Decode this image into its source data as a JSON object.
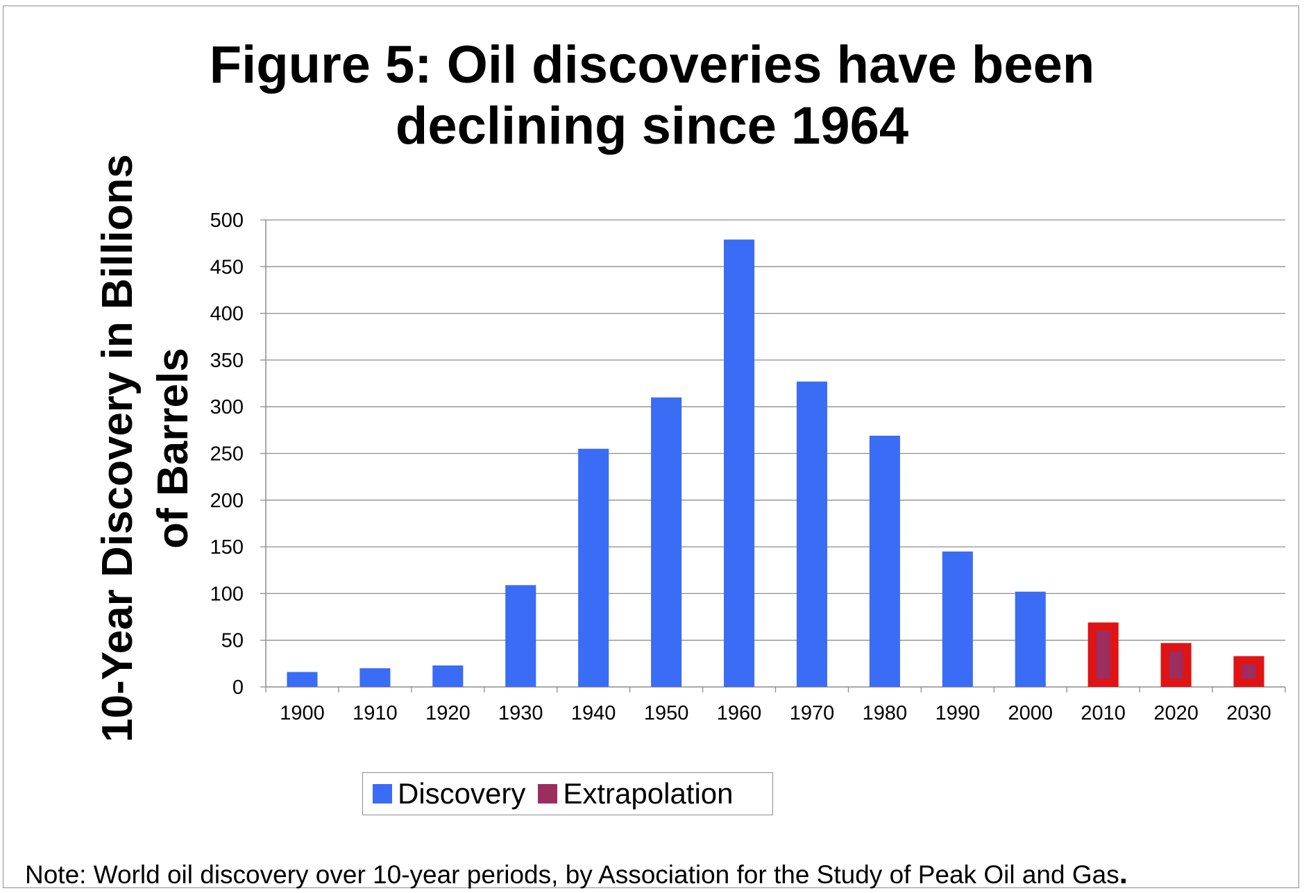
{
  "chart_data": {
    "type": "bar",
    "title": [
      "Figure 5: Oil discoveries have been",
      "declining since 1964"
    ],
    "ylabel": [
      "10-Year Discovery in Billions",
      "of Barrels"
    ],
    "xlabel": "",
    "categories": [
      "1900",
      "1910",
      "1920",
      "1930",
      "1940",
      "1950",
      "1960",
      "1970",
      "1980",
      "1990",
      "2000",
      "2010",
      "2020",
      "2030"
    ],
    "series": [
      {
        "name": "Discovery",
        "color": "#3a6cf5",
        "values": [
          16,
          20,
          23,
          109,
          255,
          310,
          479,
          327,
          269,
          145,
          102,
          null,
          null,
          null
        ]
      },
      {
        "name": "Extrapolation",
        "color": "#9b2d5f",
        "border_color": "#e01414",
        "values": [
          null,
          null,
          null,
          null,
          null,
          null,
          null,
          null,
          null,
          null,
          null,
          69,
          47,
          33
        ]
      }
    ],
    "ylim": [
      0,
      500
    ],
    "yticks": [
      0,
      50,
      100,
      150,
      200,
      250,
      300,
      350,
      400,
      450,
      500
    ],
    "grid": true,
    "legend_placement": "bottom"
  },
  "note": {
    "text": "Note: World oil discovery over 10-year periods, by Association for the Study of Peak Oil and Gas",
    "end": "."
  }
}
